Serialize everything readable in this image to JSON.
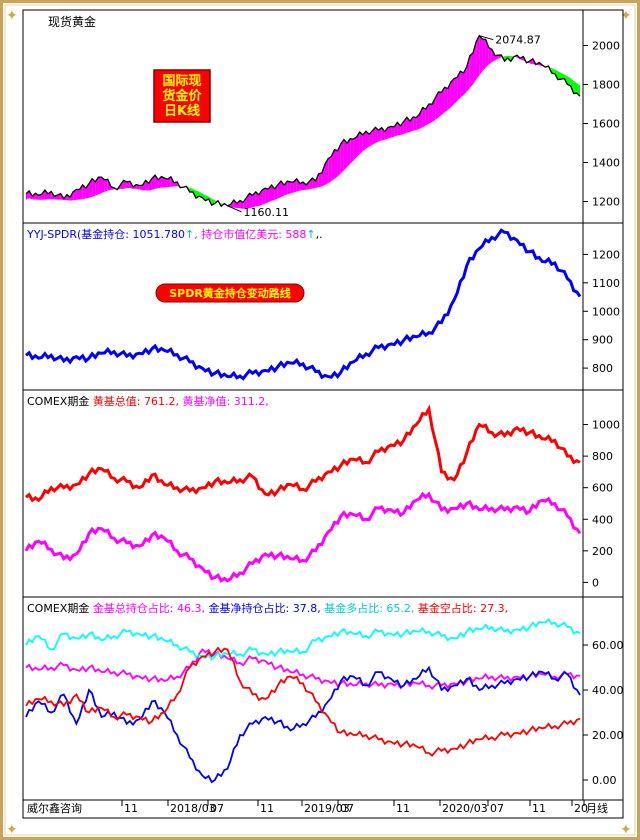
{
  "window_title": "现货黄金",
  "colors": {
    "up_fill": "#ff00ff",
    "down_fill": "#00ff00",
    "price_line": "#000000",
    "spdr_line": "#0000ff",
    "total_value": "#ff0000",
    "net_value": "#ff00ff",
    "pct_total": "#ff00ff",
    "pct_net": "#0000ff",
    "pct_long": "#00ffff",
    "pct_short": "#ff0000",
    "badge_fill": "#ff0000",
    "badge_text": "#ffff00"
  },
  "chart_data": [
    {
      "type": "area",
      "badge_lines": [
        "国际现",
        "货金价",
        "日K线"
      ],
      "ylim": [
        1100,
        2110
      ],
      "yticks": [
        "2000",
        "1800",
        "1600",
        "1400",
        "1200"
      ],
      "annotations": {
        "high": "2074.87",
        "low": "1160.11"
      },
      "series": [
        {
          "x": [
            0,
            13,
            26,
            39,
            52,
            65,
            78,
            91,
            104,
            117,
            130,
            143,
            156,
            169,
            182,
            195,
            208,
            221,
            234,
            247,
            260,
            273,
            286,
            299,
            312,
            325,
            338,
            351,
            364,
            377,
            390,
            403,
            416,
            429,
            442,
            455,
            468,
            481,
            494,
            507,
            520,
            533,
            546,
            559,
            572
          ],
          "values": [
            1240,
            1232,
            1252,
            1215,
            1262,
            1292,
            1325,
            1270,
            1300,
            1282,
            1318,
            1320,
            1300,
            1248,
            1220,
            1190,
            1178,
            1205,
            1232,
            1268,
            1285,
            1300,
            1300,
            1305,
            1420,
            1495,
            1520,
            1560,
            1565,
            1585,
            1610,
            1630,
            1700,
            1760,
            1830,
            1890,
            2050,
            1980,
            1920,
            1950,
            1920,
            1900,
            1855,
            1800,
            1740
          ]
        }
      ]
    },
    {
      "type": "line",
      "legend": [
        {
          "text": "YYJ-SPDR(基金持仓: 1051.780",
          "color": "#0000ff"
        },
        {
          "text": "↑",
          "color": "#00b8b8"
        },
        {
          "text": ", 持仓市值亿美元: 588",
          "color": "#ff00ff"
        },
        {
          "text": "↑",
          "color": "#00b8b8"
        },
        {
          "text": ",.",
          "color": "#000000"
        }
      ],
      "badge": "SPDR黄金持仓变动路线",
      "ylim": [
        730,
        1300
      ],
      "yticks": [
        "1200",
        "1100",
        "1000",
        "900",
        "800"
      ],
      "series": [
        {
          "name": "基金持仓",
          "x": [
            0,
            13,
            26,
            39,
            52,
            65,
            78,
            91,
            104,
            117,
            130,
            143,
            156,
            169,
            182,
            195,
            208,
            221,
            234,
            247,
            260,
            273,
            286,
            299,
            312,
            325,
            338,
            351,
            364,
            377,
            390,
            403,
            416,
            429,
            442,
            455,
            468,
            481,
            494,
            507,
            520,
            533,
            546,
            559,
            572
          ],
          "values": [
            845,
            835,
            845,
            825,
            840,
            835,
            852,
            858,
            842,
            852,
            868,
            862,
            848,
            822,
            800,
            782,
            770,
            772,
            782,
            792,
            805,
            818,
            815,
            788,
            770,
            785,
            822,
            850,
            872,
            885,
            898,
            910,
            925,
            960,
            1040,
            1160,
            1220,
            1260,
            1278,
            1250,
            1210,
            1175,
            1170,
            1115,
            1052
          ]
        }
      ]
    },
    {
      "type": "line",
      "legend": [
        {
          "text": "COMEX期金 ",
          "color": "#000000"
        },
        {
          "text": "黄基总值: 761.2,",
          "color": "#ff0000"
        },
        {
          "text": " 黄基净值: 311.2,",
          "color": "#ff00ff"
        }
      ],
      "ylim": [
        -80,
        1200
      ],
      "yticks": [
        "1000",
        "800",
        "600",
        "400",
        "200",
        "0"
      ],
      "series": [
        {
          "name": "黄基总值",
          "x": [
            0,
            13,
            26,
            39,
            52,
            65,
            78,
            91,
            104,
            117,
            130,
            143,
            156,
            169,
            182,
            195,
            208,
            221,
            234,
            247,
            260,
            273,
            286,
            299,
            312,
            325,
            338,
            351,
            364,
            377,
            390,
            403,
            416,
            429,
            442,
            455,
            468,
            481,
            494,
            507,
            520,
            533,
            546,
            559,
            572
          ],
          "values": [
            540,
            520,
            600,
            600,
            620,
            690,
            720,
            660,
            640,
            600,
            680,
            620,
            600,
            580,
            600,
            640,
            630,
            650,
            670,
            560,
            580,
            620,
            590,
            640,
            700,
            740,
            780,
            760,
            830,
            870,
            900,
            1000,
            1100,
            700,
            650,
            820,
            1000,
            950,
            930,
            980,
            950,
            910,
            900,
            800,
            761
          ]
        },
        {
          "name": "黄基净值",
          "x": [
            0,
            13,
            26,
            39,
            52,
            65,
            78,
            91,
            104,
            117,
            130,
            143,
            156,
            169,
            182,
            195,
            208,
            221,
            234,
            247,
            260,
            273,
            286,
            299,
            312,
            325,
            338,
            351,
            364,
            377,
            390,
            403,
            416,
            429,
            442,
            455,
            468,
            481,
            494,
            507,
            520,
            533,
            546,
            559,
            572
          ],
          "values": [
            200,
            260,
            210,
            150,
            180,
            310,
            340,
            280,
            250,
            230,
            300,
            280,
            200,
            150,
            90,
            30,
            10,
            60,
            120,
            180,
            170,
            150,
            140,
            200,
            320,
            420,
            430,
            400,
            470,
            460,
            440,
            520,
            560,
            460,
            470,
            500,
            460,
            470,
            460,
            480,
            450,
            520,
            500,
            420,
            311
          ]
        }
      ]
    },
    {
      "type": "line",
      "legend": [
        {
          "text": "COMEX期金 ",
          "color": "#000000"
        },
        {
          "text": "金基总持仓占比: 46.3,",
          "color": "#ff00ff"
        },
        {
          "text": " 金基净持仓占比: 37.8,",
          "color": "#0000ff"
        },
        {
          "text": " 基金多占比: 65.2,",
          "color": "#00cccc"
        },
        {
          "text": " 基金空占比: 27.3,",
          "color": "#ff0000"
        }
      ],
      "ylim": [
        -8,
        80
      ],
      "yticks": [
        "60.00",
        "40.00",
        "20.00",
        "0.00"
      ],
      "x_ticks": [
        "11",
        "2018/03",
        "07",
        "11",
        "2019/03",
        "07",
        "11",
        "2020/03",
        "07",
        "11",
        "20",
        "月线"
      ],
      "x_source": "威尔鑫咨询",
      "series": [
        {
          "name": "金基总持仓占比",
          "x": [
            0,
            13,
            26,
            39,
            52,
            65,
            78,
            91,
            104,
            117,
            130,
            143,
            156,
            169,
            182,
            195,
            208,
            221,
            234,
            247,
            260,
            273,
            286,
            299,
            312,
            325,
            338,
            351,
            364,
            377,
            390,
            403,
            416,
            429,
            442,
            455,
            468,
            481,
            494,
            507,
            520,
            533,
            546,
            559,
            572
          ],
          "values": [
            50,
            49,
            50,
            51,
            49,
            50,
            48,
            48,
            47,
            46,
            45,
            44,
            46,
            50,
            58,
            56,
            54,
            52,
            54,
            53,
            50,
            48,
            47,
            45,
            44,
            43,
            42,
            43,
            42,
            43,
            42,
            43,
            42,
            42,
            43,
            44,
            45,
            46,
            45,
            46,
            46,
            47,
            46,
            47,
            46.3
          ]
        },
        {
          "name": "金基净持仓占比",
          "x": [
            0,
            13,
            26,
            39,
            52,
            65,
            78,
            91,
            104,
            117,
            130,
            143,
            156,
            169,
            182,
            195,
            208,
            221,
            234,
            247,
            260,
            273,
            286,
            299,
            312,
            325,
            338,
            351,
            364,
            377,
            390,
            403,
            416,
            429,
            442,
            455,
            468,
            481,
            494,
            507,
            520,
            533,
            546,
            559,
            572
          ],
          "values": [
            28,
            35,
            30,
            38,
            25,
            40,
            28,
            30,
            25,
            27,
            35,
            30,
            20,
            10,
            2,
            0,
            5,
            20,
            25,
            28,
            26,
            22,
            25,
            28,
            35,
            44,
            46,
            42,
            48,
            45,
            42,
            45,
            50,
            40,
            42,
            45,
            40,
            42,
            43,
            45,
            46,
            48,
            45,
            47,
            37.8
          ]
        },
        {
          "name": "基金多占比",
          "x": [
            0,
            13,
            26,
            39,
            52,
            65,
            78,
            91,
            104,
            117,
            130,
            143,
            156,
            169,
            182,
            195,
            208,
            221,
            234,
            247,
            260,
            273,
            286,
            299,
            312,
            325,
            338,
            351,
            364,
            377,
            390,
            403,
            416,
            429,
            442,
            455,
            468,
            481,
            494,
            507,
            520,
            533,
            546,
            559,
            572
          ],
          "values": [
            60,
            64,
            58,
            65,
            63,
            65,
            62,
            64,
            66,
            65,
            64,
            62,
            60,
            57,
            55,
            55,
            56,
            56,
            58,
            56,
            57,
            57,
            57,
            62,
            64,
            66,
            65,
            64,
            66,
            65,
            65,
            66,
            66,
            64,
            63,
            66,
            67,
            68,
            66,
            67,
            68,
            70,
            70,
            68,
            65.2
          ]
        },
        {
          "name": "基金空占比",
          "x": [
            0,
            13,
            26,
            39,
            52,
            65,
            78,
            91,
            104,
            117,
            130,
            143,
            156,
            169,
            182,
            195,
            208,
            221,
            234,
            247,
            260,
            273,
            286,
            299,
            312,
            325,
            338,
            351,
            364,
            377,
            390,
            403,
            416,
            429,
            442,
            455,
            468,
            481,
            494,
            507,
            520,
            533,
            546,
            559,
            572
          ],
          "values": [
            33,
            36,
            35,
            33,
            38,
            30,
            32,
            28,
            29,
            28,
            26,
            30,
            38,
            50,
            55,
            57,
            58,
            44,
            38,
            36,
            42,
            46,
            43,
            35,
            28,
            21,
            20,
            20,
            18,
            17,
            16,
            15,
            12,
            13,
            14,
            16,
            18,
            19,
            20,
            21,
            22,
            23,
            24,
            25,
            27.3
          ]
        }
      ]
    }
  ]
}
